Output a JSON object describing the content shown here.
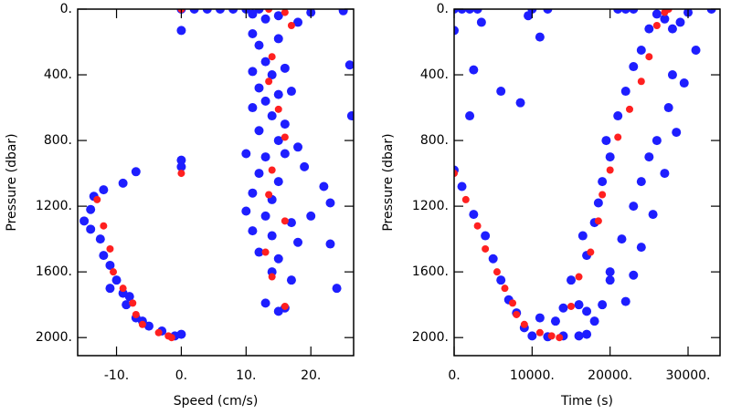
{
  "chart_data": [
    {
      "type": "scatter",
      "x_label": "Speed (cm/s)",
      "y_label": "Pressure (dbar)",
      "xlim": [
        -16,
        26.6
      ],
      "ylim": [
        2110,
        0
      ],
      "xticks": [
        {
          "value": -10,
          "label": "-10."
        },
        {
          "value": 0,
          "label": "0."
        },
        {
          "value": 10,
          "label": "10."
        },
        {
          "value": 20,
          "label": "20."
        }
      ],
      "yticks": [
        {
          "value": 0,
          "label": "0."
        },
        {
          "value": 400,
          "label": "400."
        },
        {
          "value": 800,
          "label": "800."
        },
        {
          "value": 1200,
          "label": "1200."
        },
        {
          "value": 1600,
          "label": "1600."
        },
        {
          "value": 2000,
          "label": "2000."
        }
      ],
      "series": [
        {
          "color": "#1e1eff",
          "x": [
            0,
            2,
            4,
            6,
            8,
            10,
            12,
            11,
            13,
            15,
            18,
            20,
            25,
            26,
            26.3,
            11,
            12,
            15,
            13,
            11,
            14,
            16,
            12,
            15,
            13,
            17,
            11,
            14,
            16,
            12,
            15,
            18,
            10,
            13,
            16,
            19,
            12,
            15,
            22,
            11,
            14,
            10,
            13,
            17,
            23,
            20,
            11,
            14,
            18,
            23,
            12,
            15,
            14,
            17,
            24,
            13,
            16,
            15,
            0,
            0,
            0,
            -7,
            -9,
            -12,
            -13.5,
            -14,
            -15,
            -14,
            -12.5,
            -12,
            -11,
            -10,
            -9,
            -8.5,
            -7,
            -5,
            -3,
            -1,
            0,
            -8,
            -11,
            -6
          ],
          "y": [
            0,
            0,
            0,
            0,
            0,
            0,
            0,
            30,
            60,
            40,
            80,
            20,
            10,
            340,
            650,
            150,
            220,
            180,
            320,
            380,
            400,
            360,
            480,
            520,
            560,
            500,
            600,
            650,
            700,
            740,
            800,
            840,
            880,
            900,
            880,
            960,
            1000,
            1050,
            1080,
            1120,
            1160,
            1230,
            1260,
            1300,
            1180,
            1260,
            1350,
            1380,
            1420,
            1430,
            1480,
            1520,
            1600,
            1650,
            1700,
            1790,
            1820,
            1840,
            130,
            920,
            960,
            990,
            1060,
            1100,
            1140,
            1220,
            1290,
            1340,
            1400,
            1500,
            1560,
            1650,
            1730,
            1800,
            1880,
            1930,
            1960,
            1990,
            1980,
            1750,
            1700,
            1900
          ]
        },
        {
          "color": "#ff2020",
          "x": [
            0,
            13.5,
            16,
            17,
            14,
            13.5,
            15,
            16,
            14,
            13.5,
            16,
            13,
            14,
            16,
            0,
            -13,
            -12,
            -11,
            -10.5,
            -9,
            -7.5,
            -7,
            -6,
            -3.5,
            -2,
            -1.5
          ],
          "y": [
            0,
            0,
            20,
            100,
            290,
            440,
            610,
            780,
            980,
            1130,
            1290,
            1480,
            1630,
            1810,
            1000,
            1160,
            1320,
            1460,
            1600,
            1700,
            1790,
            1860,
            1920,
            1970,
            1990,
            2000
          ]
        }
      ]
    },
    {
      "type": "scatter",
      "x_label": "Time (s)",
      "y_label": "Pressure (dbar)",
      "xlim": [
        0,
        34100
      ],
      "ylim": [
        2110,
        0
      ],
      "xticks": [
        {
          "value": 0,
          "label": "0."
        },
        {
          "value": 10000,
          "label": "10000."
        },
        {
          "value": 20000,
          "label": "20000."
        },
        {
          "value": 30000,
          "label": "30000."
        }
      ],
      "yticks": [
        {
          "value": 0,
          "label": "0."
        },
        {
          "value": 400,
          "label": "400."
        },
        {
          "value": 800,
          "label": "800."
        },
        {
          "value": 1200,
          "label": "1200."
        },
        {
          "value": 1600,
          "label": "1600."
        },
        {
          "value": 2000,
          "label": "2000."
        }
      ],
      "series": [
        {
          "color": "#1e1eff",
          "x": [
            0,
            1000,
            2000,
            3000,
            10000,
            12000,
            21000,
            22000,
            23000,
            0,
            2500,
            3500,
            11000,
            6000,
            8500,
            2000,
            9500,
            0,
            1000,
            2500,
            4000,
            5000,
            6000,
            7000,
            8000,
            9000,
            10000,
            12000,
            14000,
            16000,
            17000,
            14000,
            16000,
            15000,
            17000,
            16500,
            18000,
            18500,
            19000,
            20000,
            19500,
            21000,
            22000,
            23000,
            24000,
            25000,
            26000,
            27000,
            28000,
            29000,
            30000,
            33000,
            31000,
            28000,
            27500,
            29500,
            28500,
            26000,
            24000,
            23000,
            21500,
            20000,
            19000,
            17000,
            25000,
            27000,
            25500,
            24000,
            23000,
            22000,
            18000,
            13000,
            11000,
            20000
          ],
          "y": [
            0,
            0,
            0,
            0,
            0,
            0,
            0,
            0,
            0,
            130,
            370,
            80,
            170,
            500,
            570,
            650,
            40,
            980,
            1080,
            1250,
            1380,
            1520,
            1650,
            1770,
            1850,
            1940,
            1990,
            1995,
            1990,
            1990,
            1980,
            1820,
            1800,
            1650,
            1500,
            1380,
            1300,
            1180,
            1050,
            900,
            800,
            650,
            500,
            350,
            250,
            120,
            30,
            60,
            120,
            80,
            20,
            0,
            250,
            400,
            600,
            450,
            750,
            800,
            1050,
            1200,
            1400,
            1600,
            1800,
            1840,
            900,
            1000,
            1250,
            1450,
            1620,
            1780,
            1900,
            1900,
            1880,
            1650
          ]
        },
        {
          "color": "#ff2020",
          "x": [
            0,
            1500,
            3000,
            4000,
            5500,
            6500,
            7500,
            8000,
            9000,
            11000,
            12500,
            13500,
            15000,
            16000,
            17500,
            18500,
            19000,
            20000,
            21000,
            22500,
            24000,
            25000,
            26000,
            27000,
            27500
          ],
          "y": [
            1000,
            1160,
            1320,
            1460,
            1600,
            1700,
            1790,
            1860,
            1920,
            1970,
            1990,
            2000,
            1810,
            1630,
            1480,
            1290,
            1130,
            980,
            780,
            610,
            440,
            290,
            100,
            20,
            0
          ]
        }
      ]
    }
  ]
}
